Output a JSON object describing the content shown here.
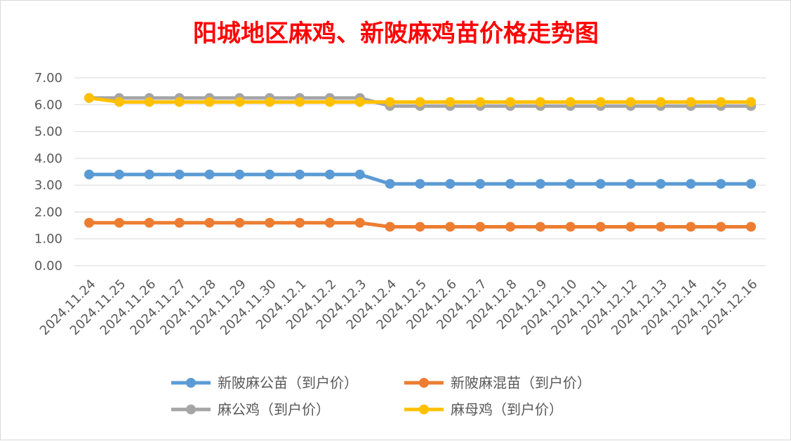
{
  "chart_data": {
    "type": "line",
    "title": "阳城地区麻鸡、新陂麻鸡苗价格走势图",
    "xlabel": "",
    "ylabel": "",
    "ylim": [
      0,
      7
    ],
    "yticks": [
      "0.00",
      "1.00",
      "2.00",
      "3.00",
      "4.00",
      "5.00",
      "6.00",
      "7.00"
    ],
    "grid": true,
    "legend_position": "bottom",
    "categories": [
      "2024.11.24",
      "2024.11.25",
      "2024.11.26",
      "2024.11.27",
      "2024.11.28",
      "2024.11.29",
      "2024.11.30",
      "2024.12.1",
      "2024.12.2",
      "2024.12.3",
      "2024.12.4",
      "2024.12.5",
      "2024.12.6",
      "2024.12.7",
      "2024.12.8",
      "2024.12.9",
      "2024.12.10",
      "2024.12.11",
      "2024.12.12",
      "2024.12.13",
      "2024.12.14",
      "2024.12.15",
      "2024.12.16"
    ],
    "series": [
      {
        "name": "新陂麻公苗（到户价）",
        "color": "#5b9bd5",
        "values": [
          3.4,
          3.4,
          3.4,
          3.4,
          3.4,
          3.4,
          3.4,
          3.4,
          3.4,
          3.4,
          3.05,
          3.05,
          3.05,
          3.05,
          3.05,
          3.05,
          3.05,
          3.05,
          3.05,
          3.05,
          3.05,
          3.05,
          3.05
        ]
      },
      {
        "name": "新陂麻混苗（到户价）",
        "color": "#ed7d31",
        "values": [
          1.6,
          1.6,
          1.6,
          1.6,
          1.6,
          1.6,
          1.6,
          1.6,
          1.6,
          1.6,
          1.45,
          1.45,
          1.45,
          1.45,
          1.45,
          1.45,
          1.45,
          1.45,
          1.45,
          1.45,
          1.45,
          1.45,
          1.45
        ]
      },
      {
        "name": "麻公鸡（到户价）",
        "color": "#a5a5a5",
        "values": [
          6.25,
          6.25,
          6.25,
          6.25,
          6.25,
          6.25,
          6.25,
          6.25,
          6.25,
          6.25,
          5.95,
          5.95,
          5.95,
          5.95,
          5.95,
          5.95,
          5.95,
          5.95,
          5.95,
          5.95,
          5.95,
          5.95,
          5.95
        ]
      },
      {
        "name": "麻母鸡（到户价）",
        "color": "#ffc000",
        "values": [
          6.25,
          6.1,
          6.1,
          6.1,
          6.1,
          6.1,
          6.1,
          6.1,
          6.1,
          6.1,
          6.1,
          6.1,
          6.1,
          6.1,
          6.1,
          6.1,
          6.1,
          6.1,
          6.1,
          6.1,
          6.1,
          6.1,
          6.1
        ]
      }
    ]
  }
}
